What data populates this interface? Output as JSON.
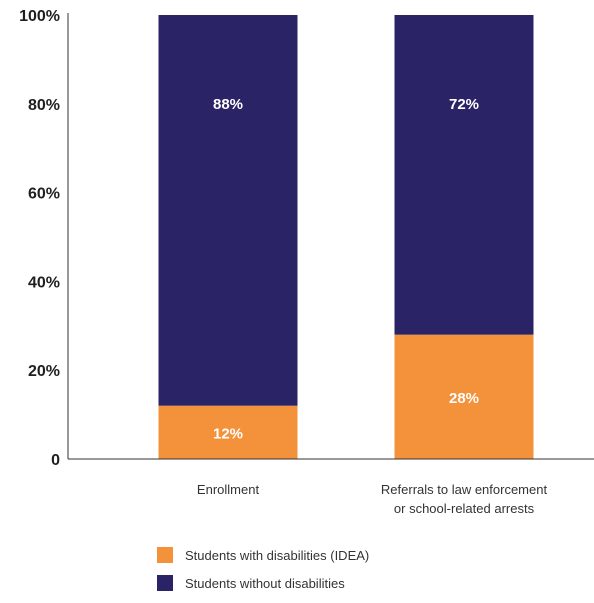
{
  "chart_data": {
    "type": "bar",
    "stacked": true,
    "categories": [
      "Enrollment",
      "Referrals to law enforcement\nor school-related arrests"
    ],
    "series": [
      {
        "name": "Students with disabilities (IDEA)",
        "values": [
          12,
          28
        ],
        "labels": [
          "12%",
          "28%"
        ],
        "color": "#f4923b"
      },
      {
        "name": "Students without disabilities",
        "values": [
          88,
          72
        ],
        "labels": [
          "88%",
          "72%"
        ],
        "color": "#2a2466"
      }
    ],
    "yticks": [
      "0",
      "20%",
      "40%",
      "60%",
      "80%",
      "100%"
    ],
    "ylim": [
      0,
      100
    ],
    "grid": false,
    "legend_position": "bottom"
  }
}
